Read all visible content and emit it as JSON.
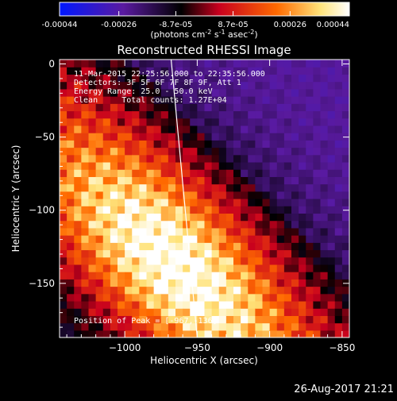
{
  "colorbar": {
    "tick_labels": [
      "-0.00044",
      "-0.00026",
      "-8.7e-05",
      "8.7e-05",
      "0.00026",
      "0.00044"
    ],
    "tick_values": [
      -0.00044,
      -0.00026,
      -8.7e-05,
      8.7e-05,
      0.00026,
      0.00044
    ],
    "range": [
      -0.00044,
      0.00044
    ],
    "units_prefix": "(photons cm",
    "units_exp1": "-2",
    "units_mid": " s",
    "units_exp2": "-1",
    "units_mid2": " asec",
    "units_exp3": "-2",
    "units_suffix": ")",
    "colors": [
      "#0018ff",
      "#5a1aa0",
      "#000000",
      "#c8001e",
      "#ff6a00",
      "#ffe37a",
      "#ffffff"
    ]
  },
  "chart_data": {
    "type": "heatmap",
    "title": "Reconstructed RHESSI Image",
    "xlabel": "Heliocentric X (arcsec)",
    "ylabel": "Heliocentric Y (arcsec)",
    "xlim": [
      -1045,
      -845
    ],
    "ylim": [
      -187,
      3
    ],
    "x_ticks": [
      -1000,
      -950,
      -900,
      -850
    ],
    "x_tick_labels": [
      "−1000",
      "−950",
      "−900",
      "−850"
    ],
    "y_ticks": [
      0,
      -50,
      -100,
      -150
    ],
    "y_tick_labels": [
      "0",
      "−50",
      "−100",
      "−150"
    ],
    "peak": {
      "x": -967,
      "y": -136
    },
    "limb_line": [
      [
        -968,
        3
      ],
      [
        -950,
        -187
      ]
    ],
    "annotations": [
      "11-Mar-2015 22:25:56.000 to 22:35:56.000",
      "Detectors: 3F 5F 6F 7F 8F 9F, Att 1",
      "Energy Range: 25.0 - 50.0 keV",
      "Clean     Total counts: 1.27E+04"
    ],
    "peak_label": "Position of Peak = [-967,-136]",
    "colorbar_range": [
      -0.00044,
      0.00044
    ]
  },
  "timestamp": "26-Aug-2017 21:21"
}
